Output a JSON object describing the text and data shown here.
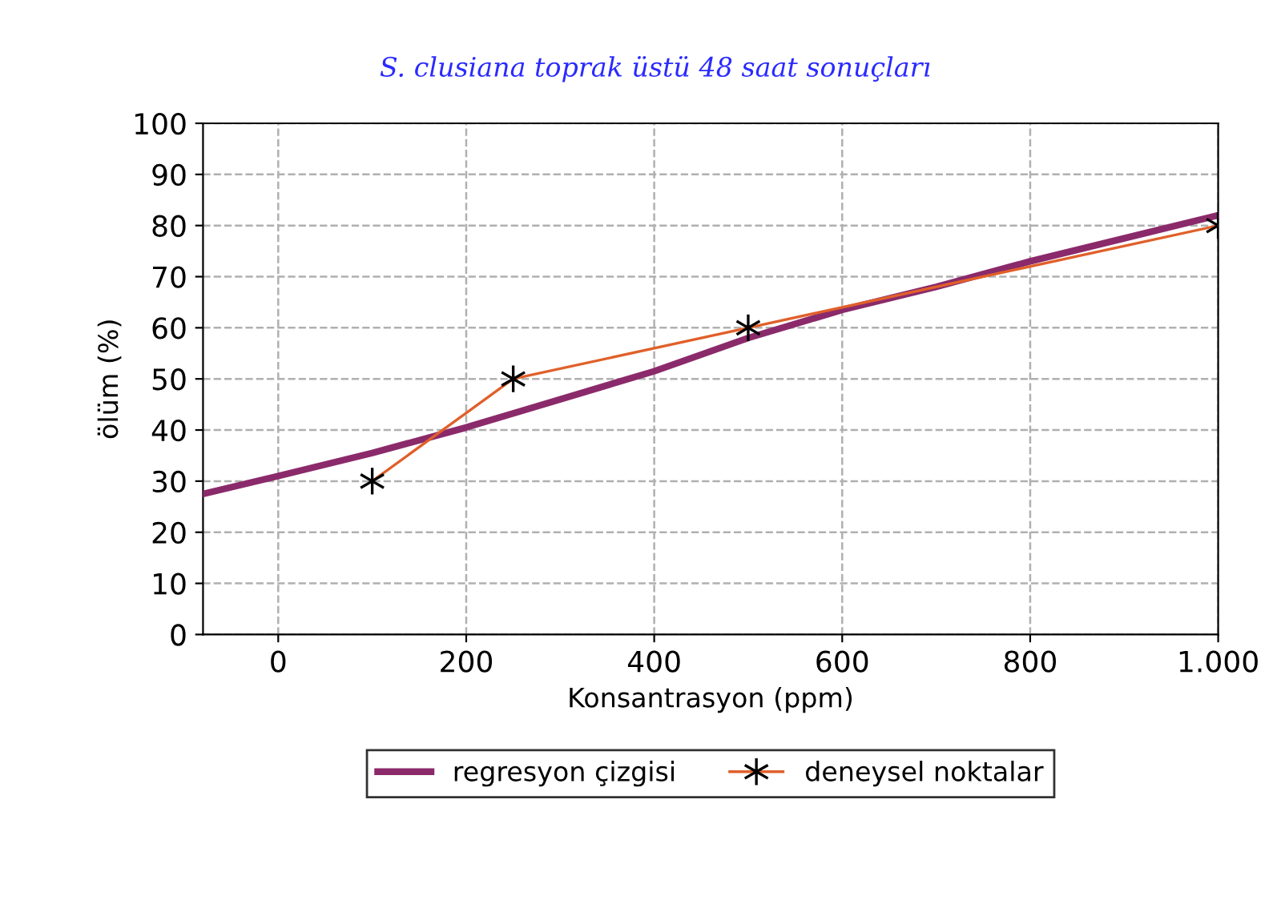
{
  "chart_data": {
    "type": "line",
    "title": "S. clusiana toprak üstü 48 saat sonuçları",
    "xlabel": "Konsantrasyon (ppm)",
    "ylabel": "ölüm (%)",
    "xlim": [
      -80,
      1000
    ],
    "xticks": [
      0,
      200,
      400,
      600,
      800,
      {
        "value": 1000,
        "label": "1.000"
      }
    ],
    "ylim": [
      0,
      100
    ],
    "yticks": [
      0,
      10,
      20,
      30,
      40,
      50,
      60,
      70,
      80,
      90,
      100
    ],
    "grid": true,
    "legend": "bottom",
    "series": [
      {
        "name": "regresyon çizgisi",
        "color": "#8b2a6b",
        "marker": "none",
        "line_style": "solid",
        "x": [
          -80,
          0,
          100,
          200,
          300,
          400,
          500,
          600,
          700,
          800,
          900,
          1000
        ],
        "values": [
          27.5,
          31,
          35.5,
          40.5,
          46,
          51.5,
          58,
          63.5,
          68,
          73,
          77.5,
          82
        ]
      },
      {
        "name": "deneysel noktalar",
        "color": "#e0602a",
        "marker": "cross",
        "line_style": "solid",
        "x": [
          100,
          250,
          500,
          1000
        ],
        "values": [
          30,
          50,
          60,
          80
        ]
      }
    ]
  }
}
